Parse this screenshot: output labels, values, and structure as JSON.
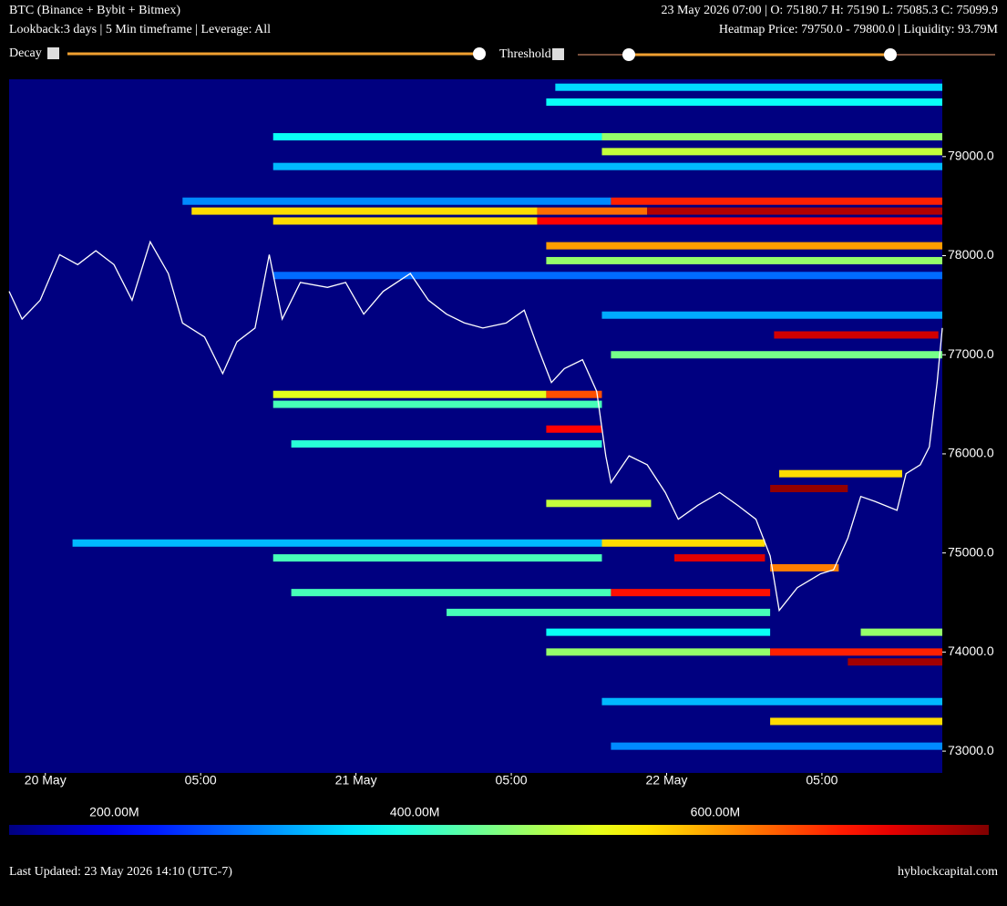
{
  "header": {
    "title": "BTC (Binance + Bybit + Bitmex)",
    "subtitle": "Lookback:3 days | 5 Min timeframe | Leverage: All",
    "ohlc": "23 May 2026 07:00 | O: 75180.7 H: 75190 L: 75085.3 C: 75099.9",
    "heatmap_info": "Heatmap Price: 79750.0 - 79800.0 | Liquidity: 93.79M"
  },
  "controls": {
    "decay": "Decay",
    "threshold": "Threshold"
  },
  "footer": {
    "updated": "Last Updated: 23 May 2026 14:10 (UTC-7)",
    "site": "hyblockcapital.com"
  },
  "chart_data": {
    "type": "heatmap",
    "xlim": [
      -2.8,
      69.3
    ],
    "ylim": [
      72780,
      79780
    ],
    "xticks": [
      {
        "value": 0,
        "label": "20 May"
      },
      {
        "value": 12,
        "label": "05:00"
      },
      {
        "value": 24,
        "label": "21 May"
      },
      {
        "value": 36,
        "label": "05:00"
      },
      {
        "value": 48,
        "label": "22 May"
      },
      {
        "value": 60,
        "label": "05:00"
      }
    ],
    "yticks": [
      {
        "value": 73000,
        "label": "73000.0"
      },
      {
        "value": 74000,
        "label": "74000.0"
      },
      {
        "value": 75000,
        "label": "75000.0"
      },
      {
        "value": 76000,
        "label": "76000.0"
      },
      {
        "value": 77000,
        "label": "77000.0"
      },
      {
        "value": 78000,
        "label": "78000.0"
      },
      {
        "value": 79000,
        "label": "79000.0"
      }
    ],
    "colorbar": {
      "lim": [
        130,
        782
      ],
      "ticks": [
        {
          "value": 200,
          "label": "200.00M"
        },
        {
          "value": 400,
          "label": "400.00M"
        },
        {
          "value": 600,
          "label": "600.00M"
        }
      ]
    },
    "price_line": {
      "color": "#ffffff",
      "x": [
        -2.8,
        -1.8,
        -0.4,
        1.1,
        2.5,
        3.9,
        5.3,
        6.7,
        8.1,
        9.5,
        10.6,
        12.3,
        13.7,
        14.8,
        16.2,
        17.3,
        18.3,
        19.7,
        21.8,
        23.2,
        24.6,
        26.1,
        28.2,
        29.6,
        31.0,
        32.4,
        33.8,
        35.6,
        37.0,
        38.0,
        39.1,
        40.1,
        41.5,
        42.6,
        43.3,
        43.7,
        45.1,
        46.5,
        47.9,
        48.9,
        50.4,
        52.1,
        53.5,
        54.9,
        56.0,
        56.7,
        58.1,
        59.9,
        60.9,
        62.0,
        63.0,
        64.1,
        65.8,
        66.5,
        67.6,
        68.3,
        68.9,
        69.3
      ],
      "values": [
        77640,
        77360,
        77550,
        78010,
        77910,
        78050,
        77910,
        77550,
        78140,
        77820,
        77320,
        77180,
        76810,
        77130,
        77270,
        78010,
        77360,
        77730,
        77680,
        77730,
        77410,
        77640,
        77820,
        77550,
        77410,
        77320,
        77270,
        77320,
        77450,
        77090,
        76720,
        76860,
        76950,
        76630,
        75980,
        75710,
        75980,
        75890,
        75610,
        75340,
        75480,
        75610,
        75480,
        75340,
        74970,
        74420,
        74650,
        74790,
        74830,
        75150,
        75570,
        75520,
        75430,
        75800,
        75890,
        76070,
        76720,
        77270
      ]
    },
    "bands": [
      {
        "price": 79700,
        "start": 39.4,
        "end": 69.3,
        "value": 350
      },
      {
        "price": 79550,
        "start": 38.7,
        "end": 69.3,
        "value": 380
      },
      {
        "price": 79200,
        "start": 17.6,
        "end": 43.0,
        "value": 380
      },
      {
        "price": 79200,
        "start": 43.0,
        "end": 69.3,
        "value": 470
      },
      {
        "price": 79050,
        "start": 43.0,
        "end": 69.3,
        "value": 500
      },
      {
        "price": 78900,
        "start": 17.6,
        "end": 69.3,
        "value": 330
      },
      {
        "price": 78550,
        "start": 10.6,
        "end": 43.7,
        "value": 300
      },
      {
        "price": 78550,
        "start": 43.7,
        "end": 69.3,
        "value": 680
      },
      {
        "price": 78450,
        "start": 11.3,
        "end": 38.0,
        "value": 560
      },
      {
        "price": 78450,
        "start": 38.0,
        "end": 46.5,
        "value": 630
      },
      {
        "price": 78450,
        "start": 46.5,
        "end": 69.3,
        "value": 750
      },
      {
        "price": 78350,
        "start": 17.6,
        "end": 38.0,
        "value": 560
      },
      {
        "price": 78350,
        "start": 38.0,
        "end": 69.3,
        "value": 700
      },
      {
        "price": 78100,
        "start": 38.7,
        "end": 69.3,
        "value": 600
      },
      {
        "price": 77950,
        "start": 38.7,
        "end": 69.3,
        "value": 470
      },
      {
        "price": 77800,
        "start": 17.6,
        "end": 69.3,
        "value": 280
      },
      {
        "price": 77400,
        "start": 43.0,
        "end": 69.3,
        "value": 320
      },
      {
        "price": 77200,
        "start": 56.3,
        "end": 69.0,
        "value": 730
      },
      {
        "price": 77000,
        "start": 43.7,
        "end": 69.3,
        "value": 450
      },
      {
        "price": 76600,
        "start": 17.6,
        "end": 38.7,
        "value": 520
      },
      {
        "price": 76600,
        "start": 38.7,
        "end": 43.0,
        "value": 650
      },
      {
        "price": 76500,
        "start": 17.6,
        "end": 43.0,
        "value": 420
      },
      {
        "price": 76250,
        "start": 38.7,
        "end": 43.0,
        "value": 700
      },
      {
        "price": 76100,
        "start": 19.0,
        "end": 43.0,
        "value": 400
      },
      {
        "price": 75800,
        "start": 56.7,
        "end": 66.2,
        "value": 560
      },
      {
        "price": 75650,
        "start": 56.0,
        "end": 62.0,
        "value": 770
      },
      {
        "price": 75500,
        "start": 38.7,
        "end": 46.8,
        "value": 500
      },
      {
        "price": 75100,
        "start": 2.1,
        "end": 43.0,
        "value": 330
      },
      {
        "price": 75100,
        "start": 43.0,
        "end": 55.6,
        "value": 560
      },
      {
        "price": 74950,
        "start": 17.6,
        "end": 43.0,
        "value": 420
      },
      {
        "price": 74950,
        "start": 48.6,
        "end": 55.6,
        "value": 720
      },
      {
        "price": 74850,
        "start": 56.0,
        "end": 61.3,
        "value": 620
      },
      {
        "price": 74600,
        "start": 19.0,
        "end": 43.7,
        "value": 420
      },
      {
        "price": 74600,
        "start": 43.7,
        "end": 56.0,
        "value": 690
      },
      {
        "price": 74400,
        "start": 31.0,
        "end": 56.0,
        "value": 420
      },
      {
        "price": 74200,
        "start": 38.7,
        "end": 56.0,
        "value": 380
      },
      {
        "price": 74200,
        "start": 63.0,
        "end": 69.3,
        "value": 470
      },
      {
        "price": 74000,
        "start": 38.7,
        "end": 56.0,
        "value": 470
      },
      {
        "price": 74000,
        "start": 56.0,
        "end": 69.3,
        "value": 680
      },
      {
        "price": 73900,
        "start": 62.0,
        "end": 69.3,
        "value": 760
      },
      {
        "price": 73500,
        "start": 43.0,
        "end": 69.3,
        "value": 330
      },
      {
        "price": 73300,
        "start": 56.0,
        "end": 69.3,
        "value": 560
      },
      {
        "price": 73050,
        "start": 43.7,
        "end": 69.3,
        "value": 300
      }
    ]
  }
}
